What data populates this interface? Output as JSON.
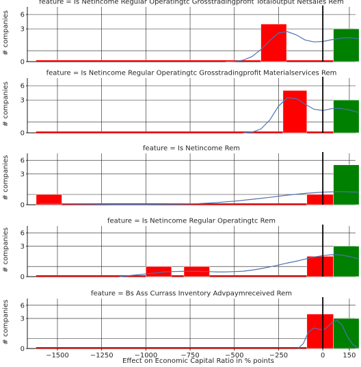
{
  "figure": {
    "xlabel": "Effect on Economic Capital Ratio in % points",
    "ylabel": "# companies"
  },
  "colors": {
    "negative": "#ff0000",
    "positive": "#008000",
    "kde": "#4c72b0",
    "zero_line": "#000000",
    "grid": "#1a1a1a"
  },
  "chart_data": [
    {
      "type": "bar",
      "title": "feature = Is Netincome Regular Operatingtc Grosstradingprofit Totaloutput Netsales Rem",
      "xlabel": "",
      "ylabel": "# companies",
      "xlim": [
        -1670,
        185
      ],
      "ylim": [
        0,
        7
      ],
      "x_ticks": [
        -1500,
        -1250,
        -1000,
        -750,
        -500,
        -250,
        0,
        150
      ],
      "y_ticks": [
        0,
        3,
        6
      ],
      "grid": true,
      "bins": [
        {
          "x0": -1620,
          "x1": -350,
          "count": 0,
          "sign": "negative"
        },
        {
          "x0": -350,
          "x1": -205,
          "count": 4,
          "sign": "negative"
        },
        {
          "x0": -205,
          "x1": 60,
          "count": 0,
          "sign": "negative"
        },
        {
          "x0": 60,
          "x1": 205,
          "count": 3,
          "sign": "positive"
        }
      ],
      "kde": {
        "x": [
          -550,
          -500,
          -450,
          -400,
          -350,
          -300,
          -250,
          -200,
          -150,
          -100,
          -50,
          0,
          50,
          100,
          150,
          200
        ],
        "y": [
          0.0,
          0.02,
          0.12,
          0.4,
          0.95,
          1.65,
          2.25,
          2.35,
          2.1,
          1.7,
          1.55,
          1.58,
          1.72,
          1.85,
          1.88,
          1.8
        ]
      }
    },
    {
      "type": "bar",
      "title": "feature = Is Netincome Regular Operatingtc Grosstradingprofit Materialservices Rem",
      "xlabel": "",
      "ylabel": "# companies",
      "xlim": [
        -1670,
        185
      ],
      "ylim": [
        0,
        7
      ],
      "x_ticks": [
        -1500,
        -1250,
        -1000,
        -750,
        -500,
        -250,
        0,
        150
      ],
      "y_ticks": [
        0,
        3,
        6
      ],
      "grid": true,
      "bins": [
        {
          "x0": -1620,
          "x1": -225,
          "count": 0,
          "sign": "negative"
        },
        {
          "x0": -225,
          "x1": -90,
          "count": 5,
          "sign": "negative"
        },
        {
          "x0": -90,
          "x1": 60,
          "count": 0,
          "sign": "negative"
        },
        {
          "x0": 60,
          "x1": 205,
          "count": 3,
          "sign": "positive"
        }
      ],
      "kde": {
        "x": [
          -450,
          -400,
          -350,
          -300,
          -250,
          -200,
          -150,
          -100,
          -50,
          0,
          50,
          100,
          150,
          200
        ],
        "y": [
          0.0,
          0.05,
          0.3,
          1.0,
          2.1,
          2.75,
          2.7,
          2.25,
          1.85,
          1.75,
          1.9,
          1.92,
          1.8,
          1.6
        ]
      }
    },
    {
      "type": "bar",
      "title": "feature = Is Netincome Rem",
      "xlabel": "",
      "ylabel": "# companies",
      "xlim": [
        -1670,
        185
      ],
      "ylim": [
        0,
        7
      ],
      "x_ticks": [
        -1500,
        -1250,
        -1000,
        -750,
        -500,
        -250,
        0,
        150
      ],
      "y_ticks": [
        0,
        3,
        6
      ],
      "grid": true,
      "bins": [
        {
          "x0": -1620,
          "x1": -1475,
          "count": 1,
          "sign": "negative"
        },
        {
          "x0": -1475,
          "x1": -90,
          "count": 0,
          "sign": "negative"
        },
        {
          "x0": -90,
          "x1": 60,
          "count": 1,
          "sign": "negative"
        },
        {
          "x0": 60,
          "x1": 205,
          "count": 5,
          "sign": "positive"
        }
      ],
      "kde": {
        "x": [
          -1600,
          -1500,
          -1400,
          -1300,
          -1200,
          -1100,
          -1000,
          -900,
          -800,
          -700,
          -600,
          -500,
          -400,
          -300,
          -200,
          -100,
          0,
          100,
          200
        ],
        "y": [
          0.1,
          0.1,
          0.07,
          0.05,
          0.03,
          0.03,
          0.03,
          0.04,
          0.06,
          0.1,
          0.18,
          0.3,
          0.45,
          0.62,
          0.8,
          0.95,
          1.05,
          1.1,
          1.05
        ]
      }
    },
    {
      "type": "bar",
      "title": "feature = Is Netincome Regular Operatingtc Rem",
      "xlabel": "",
      "ylabel": "# companies",
      "xlim": [
        -1670,
        185
      ],
      "ylim": [
        0,
        7
      ],
      "x_ticks": [
        -1500,
        -1250,
        -1000,
        -750,
        -500,
        -250,
        0,
        150
      ],
      "y_ticks": [
        0,
        3,
        6
      ],
      "grid": true,
      "bins": [
        {
          "x0": -1620,
          "x1": -1000,
          "count": 0,
          "sign": "negative"
        },
        {
          "x0": -1000,
          "x1": -855,
          "count": 1,
          "sign": "negative"
        },
        {
          "x0": -855,
          "x1": -785,
          "count": 0,
          "sign": "negative"
        },
        {
          "x0": -785,
          "x1": -640,
          "count": 1,
          "sign": "negative"
        },
        {
          "x0": -640,
          "x1": -90,
          "count": 0,
          "sign": "negative"
        },
        {
          "x0": -90,
          "x1": 60,
          "count": 2,
          "sign": "negative"
        },
        {
          "x0": 60,
          "x1": 205,
          "count": 3,
          "sign": "positive"
        }
      ],
      "kde": {
        "x": [
          -1150,
          -1050,
          -950,
          -900,
          -850,
          -800,
          -750,
          -700,
          -650,
          -600,
          -550,
          -500,
          -450,
          -400,
          -350,
          -300,
          -250,
          -200,
          -150,
          -100,
          -50,
          0,
          50,
          100,
          150,
          200
        ],
        "y": [
          0.0,
          0.15,
          0.3,
          0.4,
          0.42,
          0.44,
          0.45,
          0.44,
          0.42,
          0.4,
          0.4,
          0.42,
          0.46,
          0.55,
          0.67,
          0.82,
          0.98,
          1.15,
          1.3,
          1.48,
          1.65,
          1.78,
          1.85,
          1.83,
          1.7,
          1.5
        ]
      }
    },
    {
      "type": "bar",
      "title": "feature = Bs Ass Currass Inventory Advpaymreceived Rem",
      "xlabel": "Effect on Economic Capital Ratio in % points",
      "ylabel": "# companies",
      "xlim": [
        -1670,
        185
      ],
      "ylim": [
        0,
        7
      ],
      "x_ticks": [
        -1500,
        -1250,
        -1000,
        -750,
        -500,
        -250,
        0,
        150
      ],
      "x_tick_labels": [
        "−1500",
        "−1250",
        "−1000",
        "−750",
        "−500",
        "−250",
        "0",
        "150"
      ],
      "y_ticks": [
        0,
        3,
        6
      ],
      "grid": true,
      "bins": [
        {
          "x0": -1620,
          "x1": -90,
          "count": 0,
          "sign": "negative"
        },
        {
          "x0": -90,
          "x1": 60,
          "count": 4,
          "sign": "negative"
        },
        {
          "x0": 60,
          "x1": 205,
          "count": 3,
          "sign": "positive"
        }
      ],
      "kde": {
        "x": [
          -140,
          -110,
          -80,
          -50,
          -20,
          0,
          20,
          50,
          80,
          110,
          140,
          170,
          200
        ],
        "y": [
          0.0,
          0.8,
          2.6,
          3.2,
          3.0,
          2.9,
          3.2,
          4.0,
          4.4,
          3.6,
          1.8,
          0.6,
          0.1
        ]
      }
    }
  ]
}
